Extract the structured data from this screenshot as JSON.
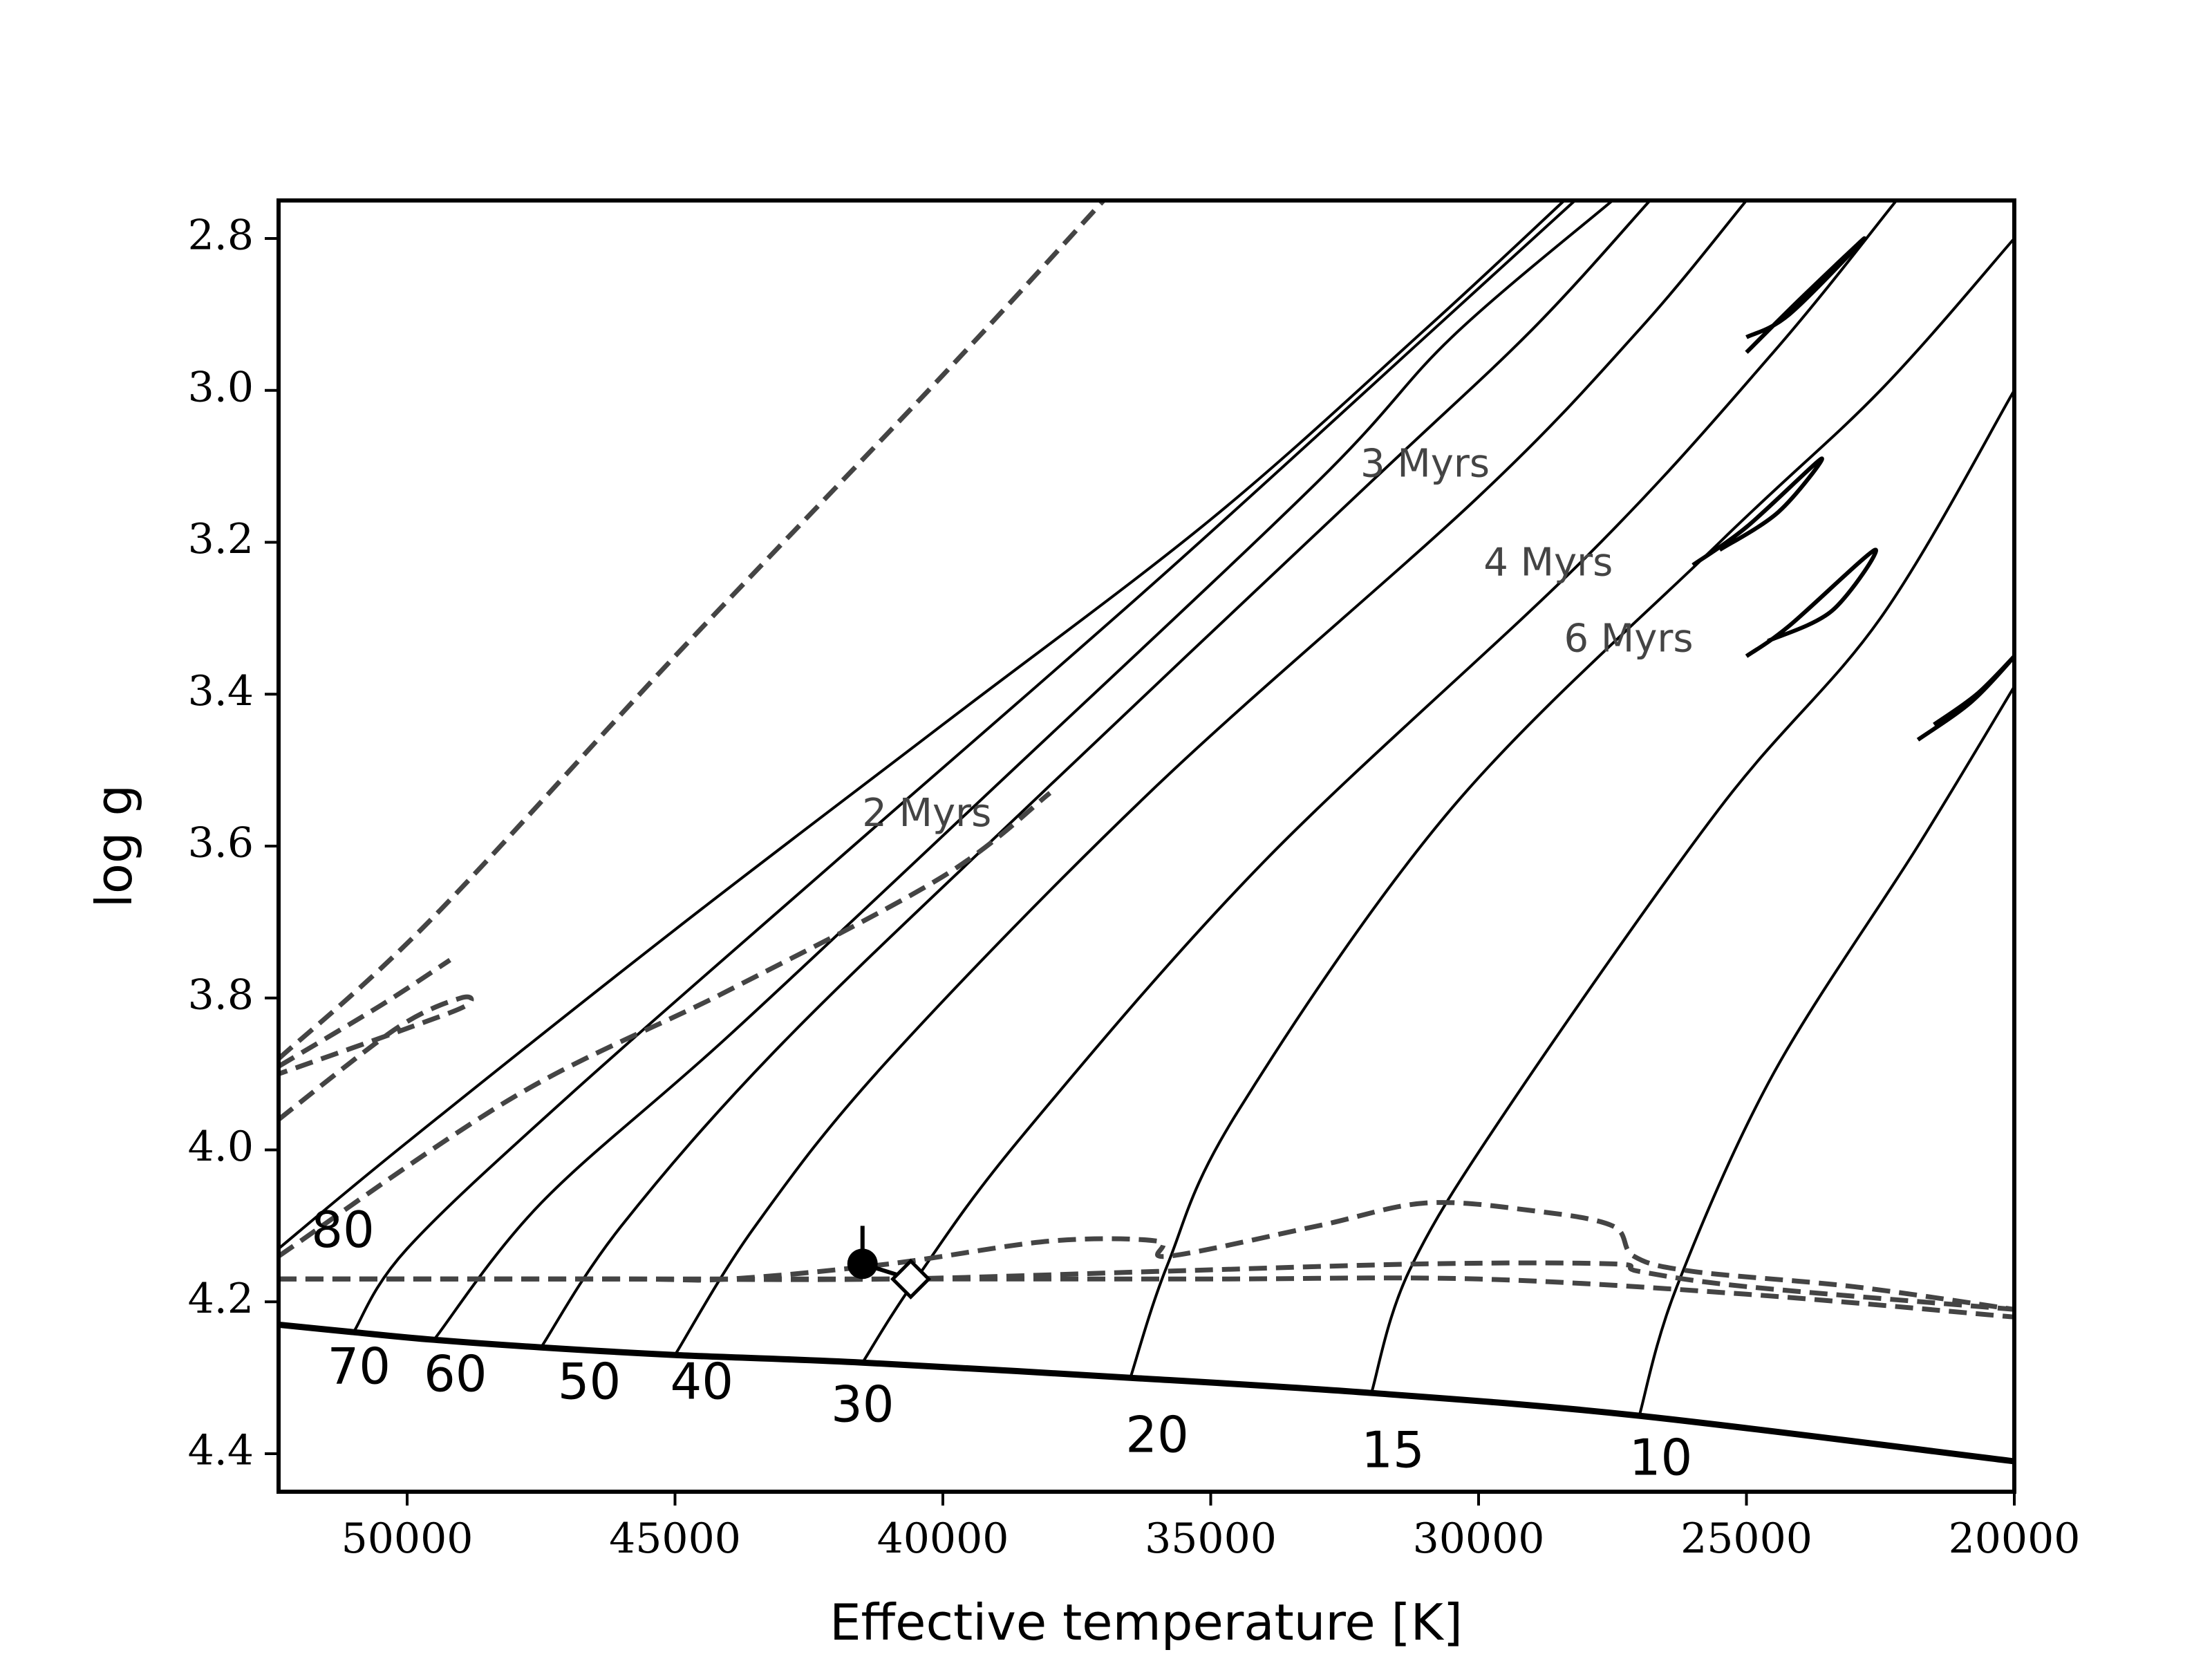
{
  "chart_data": {
    "type": "line",
    "title": "",
    "xlabel": "Effective temperature [K]",
    "ylabel": "log g",
    "xlim": [
      52400,
      20000
    ],
    "ylim": [
      4.45,
      2.75
    ],
    "x_ticks": [
      50000,
      45000,
      40000,
      35000,
      30000,
      25000,
      20000
    ],
    "x_tick_labels": [
      "50000",
      "45000",
      "40000",
      "35000",
      "30000",
      "25000",
      "20000"
    ],
    "y_ticks": [
      2.8,
      3.0,
      3.2,
      3.4,
      3.6,
      3.8,
      4.0,
      4.2,
      4.4
    ],
    "y_tick_labels": [
      "2.8",
      "3.0",
      "3.2",
      "3.4",
      "3.6",
      "3.8",
      "4.0",
      "4.2",
      "4.4"
    ],
    "zams": [
      [
        52400,
        4.23
      ],
      [
        51000,
        4.24
      ],
      [
        49500,
        4.25
      ],
      [
        47500,
        4.26
      ],
      [
        45000,
        4.27
      ],
      [
        41500,
        4.28
      ],
      [
        36500,
        4.3
      ],
      [
        32000,
        4.32
      ],
      [
        27000,
        4.35
      ],
      [
        20000,
        4.41
      ]
    ],
    "tracks": [
      {
        "label": "80",
        "points": [
          [
            52400,
            4.13
          ],
          [
            50000,
            3.99
          ],
          [
            45000,
            3.71
          ],
          [
            40000,
            3.44
          ],
          [
            35000,
            3.17
          ],
          [
            31000,
            2.92
          ],
          [
            28400,
            2.75
          ]
        ]
      },
      {
        "label": "70",
        "points": [
          [
            51000,
            4.24
          ],
          [
            50000,
            4.13
          ],
          [
            47000,
            3.93
          ],
          [
            42000,
            3.62
          ],
          [
            36000,
            3.25
          ],
          [
            31000,
            2.93
          ],
          [
            28200,
            2.75
          ]
        ]
      },
      {
        "label": "60",
        "points": [
          [
            49500,
            4.25
          ],
          [
            47500,
            4.07
          ],
          [
            44000,
            3.85
          ],
          [
            39000,
            3.52
          ],
          [
            33000,
            3.12
          ],
          [
            30500,
            2.93
          ],
          [
            27500,
            2.75
          ]
        ]
      },
      {
        "label": "50",
        "points": [
          [
            47500,
            4.26
          ],
          [
            46000,
            4.1
          ],
          [
            43000,
            3.86
          ],
          [
            38000,
            3.52
          ],
          [
            32000,
            3.12
          ],
          [
            29000,
            2.92
          ],
          [
            26800,
            2.75
          ]
        ]
      },
      {
        "label": "40",
        "points": [
          [
            45000,
            4.27
          ],
          [
            43500,
            4.1
          ],
          [
            41000,
            3.88
          ],
          [
            36000,
            3.52
          ],
          [
            30000,
            3.14
          ],
          [
            27000,
            2.92
          ],
          [
            25000,
            2.75
          ]
        ]
      },
      {
        "label": "30",
        "points": [
          [
            41500,
            4.28
          ],
          [
            40500,
            4.17
          ],
          [
            38500,
            3.98
          ],
          [
            34000,
            3.62
          ],
          [
            28000,
            3.22
          ],
          [
            24500,
            2.95
          ],
          [
            22200,
            2.75
          ]
        ]
      },
      {
        "label": "20",
        "points": [
          [
            36500,
            4.3
          ],
          [
            35800,
            4.15
          ],
          [
            34500,
            3.95
          ],
          [
            30500,
            3.55
          ],
          [
            25500,
            3.2
          ],
          [
            22500,
            3.0
          ],
          [
            20000,
            2.8
          ]
        ]
      },
      {
        "label": "15",
        "points": [
          [
            32000,
            4.32
          ],
          [
            31300,
            4.16
          ],
          [
            29500,
            3.95
          ],
          [
            25500,
            3.55
          ],
          [
            22500,
            3.3
          ],
          [
            20000,
            3.0
          ]
        ]
      },
      {
        "label": "10",
        "points": [
          [
            27000,
            4.35
          ],
          [
            26300,
            4.18
          ],
          [
            24500,
            3.9
          ],
          [
            21800,
            3.6
          ],
          [
            20000,
            3.39
          ]
        ]
      }
    ],
    "hooks": [
      [
        [
          25000,
          2.95
        ],
        [
          24000,
          2.88
        ],
        [
          22800,
          2.8
        ],
        [
          24200,
          2.9
        ],
        [
          25000,
          2.93
        ]
      ],
      [
        [
          26000,
          3.23
        ],
        [
          25000,
          3.18
        ],
        [
          23600,
          3.09
        ],
        [
          24400,
          3.16
        ],
        [
          25500,
          3.21
        ]
      ],
      [
        [
          25000,
          3.35
        ],
        [
          24200,
          3.31
        ],
        [
          22600,
          3.21
        ],
        [
          23400,
          3.29
        ],
        [
          24600,
          3.33
        ]
      ],
      [
        [
          21800,
          3.46
        ],
        [
          20800,
          3.41
        ],
        [
          20000,
          3.35
        ],
        [
          20700,
          3.4
        ],
        [
          21500,
          3.44
        ]
      ]
    ],
    "isochrones": [
      {
        "label": "2 Myrs",
        "points": [
          [
            52400,
            4.14
          ],
          [
            48000,
            3.93
          ],
          [
            44000,
            3.79
          ],
          [
            40000,
            3.64
          ],
          [
            38000,
            3.53
          ]
        ]
      },
      {
        "label": "3 Myrs",
        "points": [
          [
            52400,
            4.17
          ],
          [
            46000,
            4.17
          ],
          [
            44000,
            4.17
          ],
          [
            41000,
            4.15
          ],
          [
            38000,
            4.12
          ],
          [
            36000,
            4.12
          ],
          [
            35800,
            4.14
          ],
          [
            33000,
            4.1
          ],
          [
            31000,
            4.07
          ],
          [
            29000,
            4.08
          ],
          [
            27500,
            4.1
          ],
          [
            27100,
            4.14
          ],
          [
            26000,
            4.16
          ],
          [
            23000,
            4.18
          ],
          [
            20000,
            4.21
          ]
        ]
      },
      {
        "label": "4 Myrs",
        "points": [
          [
            52400,
            4.17
          ],
          [
            46000,
            4.17
          ],
          [
            41000,
            4.17
          ],
          [
            36000,
            4.16
          ],
          [
            31000,
            4.15
          ],
          [
            27500,
            4.15
          ],
          [
            27000,
            4.16
          ],
          [
            25000,
            4.18
          ],
          [
            20000,
            4.21
          ]
        ]
      },
      {
        "label": "6 Myrs",
        "points": [
          [
            52400,
            4.17
          ],
          [
            45000,
            4.17
          ],
          [
            40000,
            4.17
          ],
          [
            35000,
            4.17
          ],
          [
            30000,
            4.17
          ],
          [
            25000,
            4.19
          ],
          [
            20000,
            4.22
          ]
        ]
      }
    ],
    "upper_dashes": [
      [
        [
          52400,
          3.88
        ],
        [
          49600,
          3.7
        ],
        [
          45000,
          3.35
        ],
        [
          40000,
          2.98
        ],
        [
          37000,
          2.75
        ]
      ],
      [
        [
          52400,
          3.89
        ],
        [
          50500,
          3.81
        ],
        [
          49200,
          3.75
        ]
      ],
      [
        [
          52400,
          3.96
        ],
        [
          50200,
          3.84
        ],
        [
          49000,
          3.8
        ],
        [
          48900,
          3.81
        ],
        [
          50000,
          3.84
        ],
        [
          52400,
          3.9
        ]
      ]
    ],
    "isochrone_labels": [
      {
        "text": "2 Myrs",
        "x": 40300,
        "y": 3.56
      },
      {
        "text": "3 Myrs",
        "x": 31000,
        "y": 3.1
      },
      {
        "text": "4 Myrs",
        "x": 28700,
        "y": 3.23
      },
      {
        "text": "6 Myrs",
        "x": 27200,
        "y": 3.33
      }
    ],
    "mass_labels": [
      {
        "text": "80",
        "x": 51200,
        "y": 4.11
      },
      {
        "text": "70",
        "x": 50900,
        "y": 4.29
      },
      {
        "text": "60",
        "x": 49100,
        "y": 4.3
      },
      {
        "text": "50",
        "x": 46600,
        "y": 4.31
      },
      {
        "text": "40",
        "x": 44500,
        "y": 4.31
      },
      {
        "text": "30",
        "x": 41500,
        "y": 4.34
      },
      {
        "text": "20",
        "x": 36000,
        "y": 4.38
      },
      {
        "text": "15",
        "x": 31600,
        "y": 4.4
      },
      {
        "text": "10",
        "x": 26600,
        "y": 4.41
      }
    ],
    "star_filled": {
      "x": 41500,
      "y": 4.15,
      "err_up": 0.05
    },
    "star_open": {
      "x": 40600,
      "y": 4.17
    },
    "colors": {
      "tracks": "#000000",
      "isochrones": "#444444",
      "axes": "#000000"
    }
  }
}
